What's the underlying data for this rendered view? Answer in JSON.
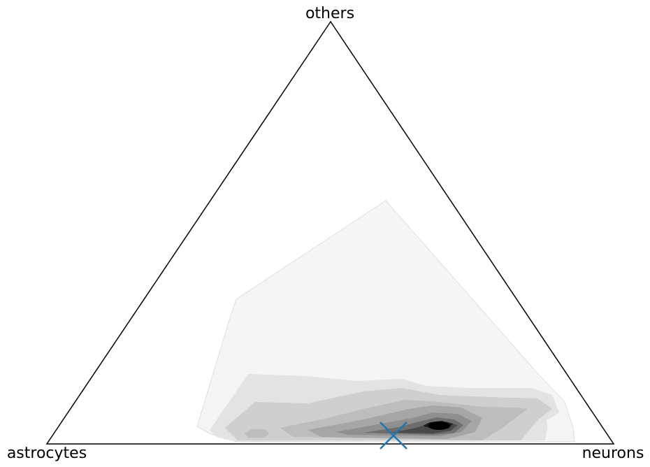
{
  "chart_data": {
    "type": "ternary_density_contour",
    "vertices": {
      "top": "others",
      "left": "astrocytes",
      "right": "neurons"
    },
    "contour_levels": 9,
    "colormap": "greys",
    "contour_colors": [
      "#f5f5f5",
      "#e3e3e3",
      "#cfcfcf",
      "#bdbdbd",
      "#a6a6a6",
      "#8f8f8f",
      "#6e6e6e",
      "#4a4a4a",
      "#1c1c1c",
      "#000000"
    ],
    "density_peak": {
      "astrocytes": 0.29,
      "neurons": 0.7,
      "others": 0.04
    },
    "marker": {
      "symbol": "x",
      "color": "#1f77b4",
      "position": {
        "astrocytes": 0.38,
        "neurons": 0.6,
        "others": 0.02
      }
    }
  }
}
